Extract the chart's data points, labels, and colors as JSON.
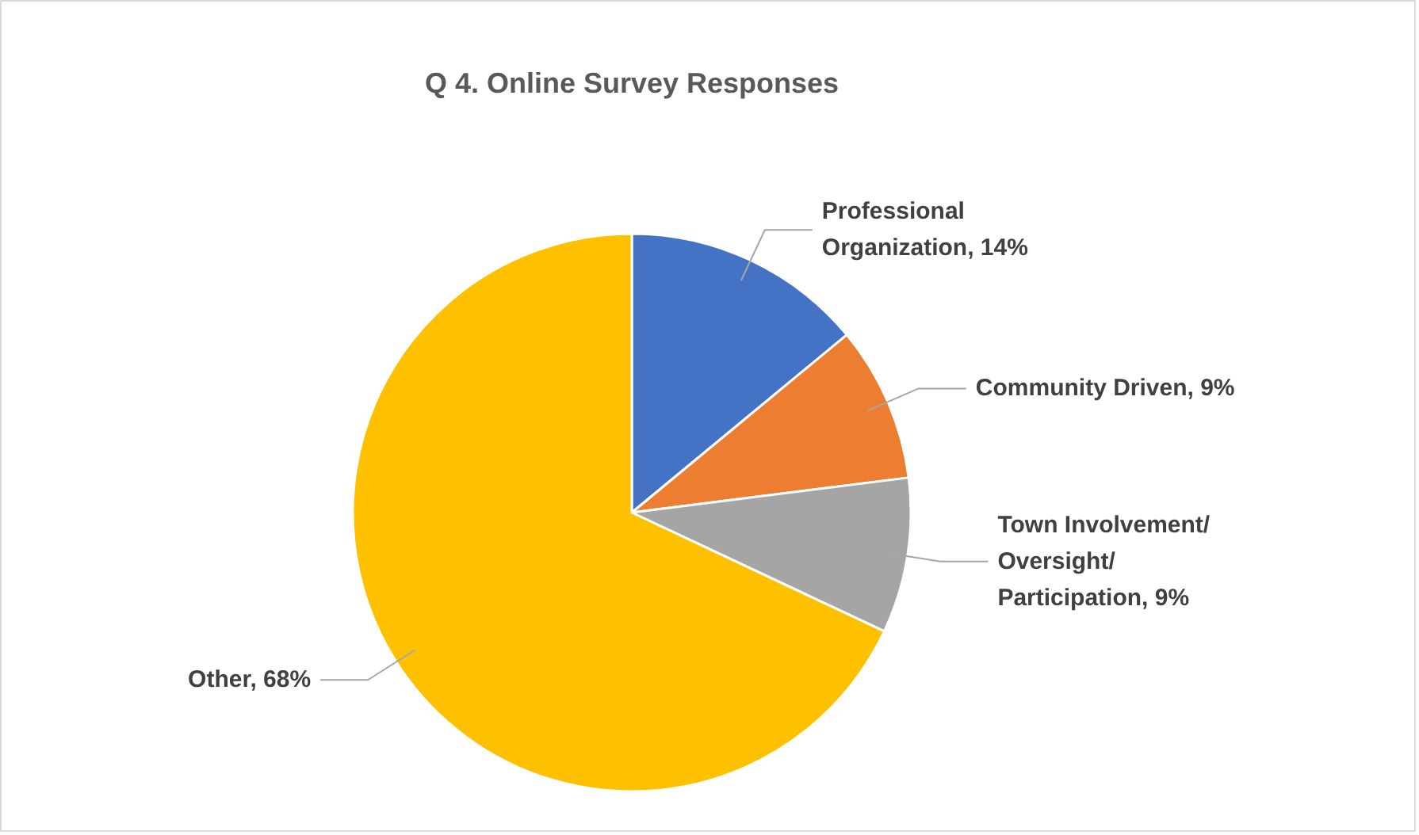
{
  "chart_data": {
    "type": "pie",
    "title": "Q 4. Online Survey Responses",
    "categories": [
      "Professional Organization",
      "Community Driven",
      "Town Involvement/Oversight/Participation",
      "Other"
    ],
    "values": [
      14,
      9,
      9,
      68
    ],
    "value_labels": [
      "14%",
      "9%",
      "9%",
      "68%"
    ],
    "colors": [
      "#4472c4",
      "#ed7d31",
      "#a5a5a5",
      "#ffc000"
    ]
  }
}
